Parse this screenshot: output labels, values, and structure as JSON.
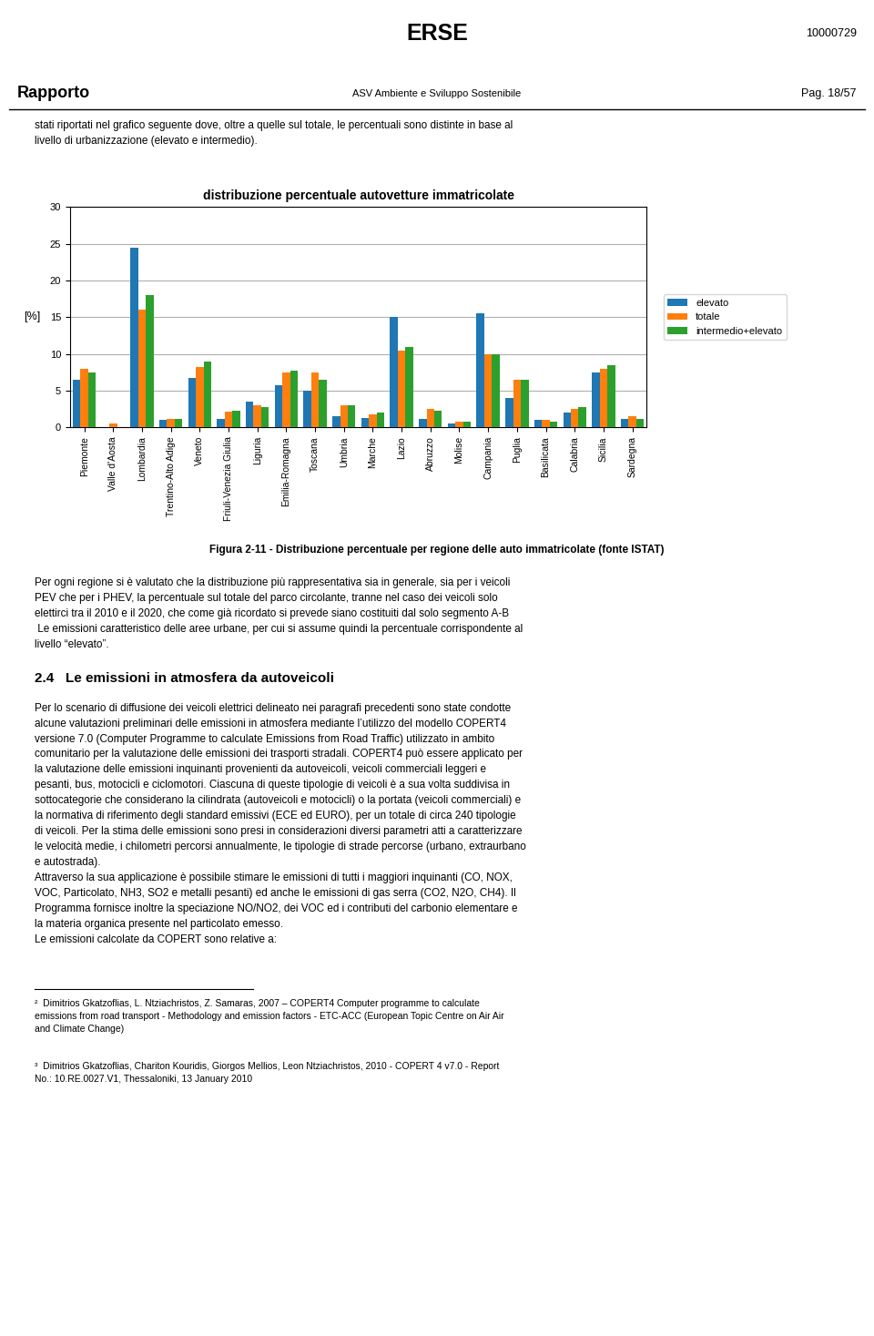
{
  "chart_data": {
    "type": "bar",
    "title": "distribuzione percentuale autovetture immatricolate",
    "ylabel": "[%]",
    "categories": [
      "Piemonte",
      "Valle d'Aosta",
      "Lombardia",
      "Trentino-Alto Adige",
      "Veneto",
      "Friuli-Venezia Giulia",
      "Liguria",
      "Emilia-Romagna",
      "Toscana",
      "Umbria",
      "Marche",
      "Lazio",
      "Abruzzo",
      "Molise",
      "Campania",
      "Puglia",
      "Basilicata",
      "Calabria",
      "Sicilia",
      "Sardegna"
    ],
    "series": [
      {
        "name": "elevato",
        "values": [
          6.5,
          0.0,
          24.5,
          1.0,
          6.8,
          1.2,
          3.5,
          5.8,
          5.0,
          1.5,
          1.3,
          15.0,
          1.2,
          0.5,
          15.5,
          4.0,
          1.0,
          2.0,
          7.5,
          1.2
        ]
      },
      {
        "name": "totale",
        "values": [
          8.0,
          0.5,
          16.0,
          1.2,
          8.2,
          2.1,
          3.0,
          7.5,
          7.5,
          3.0,
          1.8,
          10.5,
          2.5,
          0.8,
          10.0,
          6.5,
          1.0,
          2.5,
          8.0,
          1.5
        ]
      },
      {
        "name": "intermedio+elevato",
        "values": [
          7.5,
          0.0,
          18.0,
          1.2,
          9.0,
          2.3,
          2.8,
          7.8,
          6.5,
          3.0,
          2.0,
          11.0,
          2.3,
          0.8,
          10.0,
          6.5,
          0.8,
          2.8,
          8.5,
          1.2
        ]
      }
    ],
    "ylim": [
      0,
      30
    ],
    "yticks": [
      0,
      5,
      10,
      15,
      20,
      25,
      30
    ],
    "grid": true,
    "legend": "right",
    "annotations": [
      "ERSE",
      "Rapporto",
      "ASV Ambiente e Sviluppo Sostenibile",
      "10000729",
      "Pag. 18/57",
      "stati riportati nel grafico seguente dove, oltre a quelle sul totale, le percentuali sono distinte in base al\nlivello di urbanizzazione (elevato e intermedio).",
      "Figura 2-11 - Distribuzione percentuale per regione delle auto immatricolate (fonte ISTAT)",
      "Per ogni regione si è valutato che la distribuzione più rappresentativa sia in generale, sia per i veicoli\nPEV che per i PHEV, la percentuale sul totale del parco circolante, tranne nel caso dei veicoli solo\nelettirci tra il 2010 e il 2020, che come già ricordato si prevede siano costituiti dal solo segmento A-B\n Le emissioni caratteristico delle aree urbane, per cui si assume quindi la percentuale corrispondente al\nlivello “elevato”.",
      "2.4   Le emissioni in atmosfera da autoveicoli",
      "Per lo scenario di diffusione dei veicoli elettrici delineato nei paragrafi precedenti sono state condotte\nalcune valutazioni preliminari delle emissioni in atmosfera mediante l’utilizzo del modello COPERT4\nversione 7.0 (Computer Programme to calculate Emissions from Road Traffic) utilizzato in ambito\ncomunitario per la valutazione delle emissioni dei trasporti stradali. COPERT4 può essere applicato per\nla valutazione delle emissioni inquinanti provenienti da autoveicoli, veicoli commerciali leggeri e\npesanti, bus, motocicli e ciclomotori. Ciascuna di queste tipologie di veicoli è a sua volta suddivisa in\nsottocategorie che considerano la cilindrata (autoveicoli e motocicli) o la portata (veicoli commerciali) e\nla normativa di riferimento degli standard emissivi (ECE ed EURO), per un totale di circa 240 tipologie\ndi veicoli. Per la stima delle emissioni sono presi in considerazioni diversi parametri atti a caratterizzare\nle velocità medie, i chilometri percorsi annualmente, le tipologie di strade percorse (urbano, extraurbano\ne autostrada).\nAttraverso la sua applicazione è possibile stimare le emissioni di tutti i maggiori inquinanti (CO, NOX,\nVOC, Particolato, NH3, SO2 e metalli pesanti) ed anche le emissioni di gas serra (CO2, N2O, CH4). Il\nProgramma fornisce inoltre la speciazione NO/NO2, dei VOC ed i contributi del carbonio elementare e\nla materia organica presente nel particolato emesso.\nLe emissioni calcolate da COPERT sono relative a:",
      "²  Dimitrios Gkatzoflias, L. Ntziachristos, Z. Samaras, 2007 – COPERT4 Computer programme to calculate\nemissions from road transport - Methodology and emission factors - ETC-ACC (European Topic Centre on Air Air\nand Climate Change)",
      "³  Dimitrios Gkatzoflias, Chariton Kouridis, Giorgos Mellios, Leon Ntziachristos, 2010 - COPERT 4 v7.0 - Report\nNo.: 10.RE.0027.V1, Thessaloniki, 13 January 2010"
    ]
  }
}
